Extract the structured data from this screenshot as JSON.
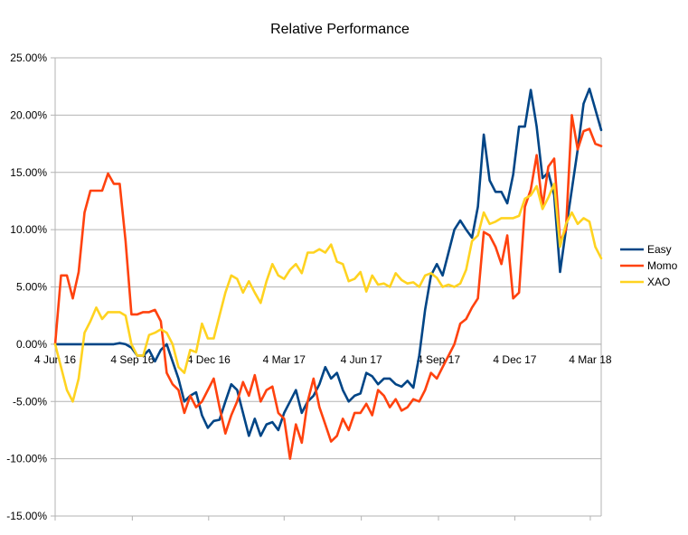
{
  "chart_data": {
    "type": "line",
    "title": "Relative Performance",
    "xlabel": "",
    "ylabel": "",
    "ylim": [
      -0.15,
      0.25
    ],
    "y_tick_labels": [
      "25.00%",
      "20.00%",
      "15.00%",
      "10.00%",
      "5.00%",
      "0.00%",
      "-5.00%",
      "-10.00%",
      "-15.00%"
    ],
    "y_tick_values": [
      0.25,
      0.2,
      0.15,
      0.1,
      0.05,
      0.0,
      -0.05,
      -0.1,
      -0.15
    ],
    "x_tick_labels": [
      "4 Jun 16",
      "4 Sep 16",
      "4 Dec 16",
      "4 Mar 17",
      "4 Jun 17",
      "4 Sep 17",
      "4 Dec 17",
      "4 Mar 18"
    ],
    "grid": "horizontal",
    "legend_position": "right",
    "x_start": "2016-06-04",
    "x_step_days": 7,
    "series": [
      {
        "name": "Easy",
        "color": "#004586",
        "values": [
          0.0,
          0.0,
          0.0,
          0.0,
          0.0,
          0.0,
          0.0,
          0.0,
          0.0,
          0.0,
          0.0,
          0.001,
          0.0,
          -0.003,
          -0.01,
          -0.01,
          -0.005,
          -0.015,
          -0.005,
          0.0,
          -0.015,
          -0.03,
          -0.05,
          -0.045,
          -0.042,
          -0.062,
          -0.073,
          -0.067,
          -0.066,
          -0.05,
          -0.035,
          -0.04,
          -0.06,
          -0.08,
          -0.065,
          -0.08,
          -0.07,
          -0.068,
          -0.075,
          -0.06,
          -0.05,
          -0.04,
          -0.06,
          -0.05,
          -0.045,
          -0.035,
          -0.02,
          -0.03,
          -0.025,
          -0.04,
          -0.05,
          -0.045,
          -0.043,
          -0.025,
          -0.028,
          -0.035,
          -0.03,
          -0.03,
          -0.035,
          -0.037,
          -0.032,
          -0.038,
          -0.01,
          0.03,
          0.06,
          0.07,
          0.06,
          0.08,
          0.1,
          0.108,
          0.1,
          0.093,
          0.12,
          0.183,
          0.143,
          0.133,
          0.133,
          0.123,
          0.148,
          0.19,
          0.19,
          0.222,
          0.19,
          0.145,
          0.15,
          0.13,
          0.063,
          0.1,
          0.135,
          0.17,
          0.21,
          0.223,
          0.205,
          0.187
        ]
      },
      {
        "name": "Momo",
        "color": "#ff420e",
        "values": [
          0.0,
          0.06,
          0.06,
          0.04,
          0.063,
          0.115,
          0.134,
          0.134,
          0.134,
          0.149,
          0.14,
          0.14,
          0.09,
          0.026,
          0.026,
          0.028,
          0.028,
          0.03,
          0.02,
          -0.025,
          -0.035,
          -0.04,
          -0.06,
          -0.045,
          -0.055,
          -0.05,
          -0.04,
          -0.03,
          -0.055,
          -0.078,
          -0.062,
          -0.05,
          -0.033,
          -0.045,
          -0.027,
          -0.05,
          -0.04,
          -0.037,
          -0.06,
          -0.065,
          -0.1,
          -0.07,
          -0.086,
          -0.05,
          -0.03,
          -0.055,
          -0.07,
          -0.085,
          -0.08,
          -0.065,
          -0.075,
          -0.06,
          -0.06,
          -0.052,
          -0.062,
          -0.04,
          -0.045,
          -0.055,
          -0.048,
          -0.058,
          -0.055,
          -0.048,
          -0.05,
          -0.04,
          -0.025,
          -0.03,
          -0.02,
          -0.01,
          0.0,
          0.018,
          0.022,
          0.032,
          0.04,
          0.098,
          0.095,
          0.085,
          0.07,
          0.095,
          0.04,
          0.045,
          0.12,
          0.135,
          0.165,
          0.12,
          0.155,
          0.162,
          0.09,
          0.1,
          0.2,
          0.17,
          0.186,
          0.188,
          0.175,
          0.173
        ]
      },
      {
        "name": "XAO",
        "color": "#ffd320",
        "values": [
          0.0,
          -0.02,
          -0.04,
          -0.05,
          -0.03,
          0.01,
          0.02,
          0.032,
          0.022,
          0.028,
          0.028,
          0.028,
          0.025,
          0.0,
          -0.01,
          -0.01,
          0.008,
          0.01,
          0.013,
          0.01,
          0.0,
          -0.02,
          -0.025,
          -0.005,
          -0.007,
          0.018,
          0.005,
          0.005,
          0.025,
          0.045,
          0.06,
          0.057,
          0.045,
          0.055,
          0.045,
          0.036,
          0.055,
          0.07,
          0.06,
          0.057,
          0.065,
          0.07,
          0.062,
          0.08,
          0.08,
          0.083,
          0.08,
          0.087,
          0.072,
          0.07,
          0.055,
          0.057,
          0.063,
          0.046,
          0.06,
          0.052,
          0.053,
          0.05,
          0.062,
          0.056,
          0.053,
          0.054,
          0.05,
          0.06,
          0.062,
          0.058,
          0.05,
          0.052,
          0.05,
          0.053,
          0.065,
          0.09,
          0.095,
          0.115,
          0.105,
          0.107,
          0.11,
          0.11,
          0.11,
          0.112,
          0.127,
          0.13,
          0.138,
          0.118,
          0.128,
          0.14,
          0.085,
          0.105,
          0.115,
          0.105,
          0.11,
          0.107,
          0.085,
          0.075
        ]
      }
    ]
  }
}
